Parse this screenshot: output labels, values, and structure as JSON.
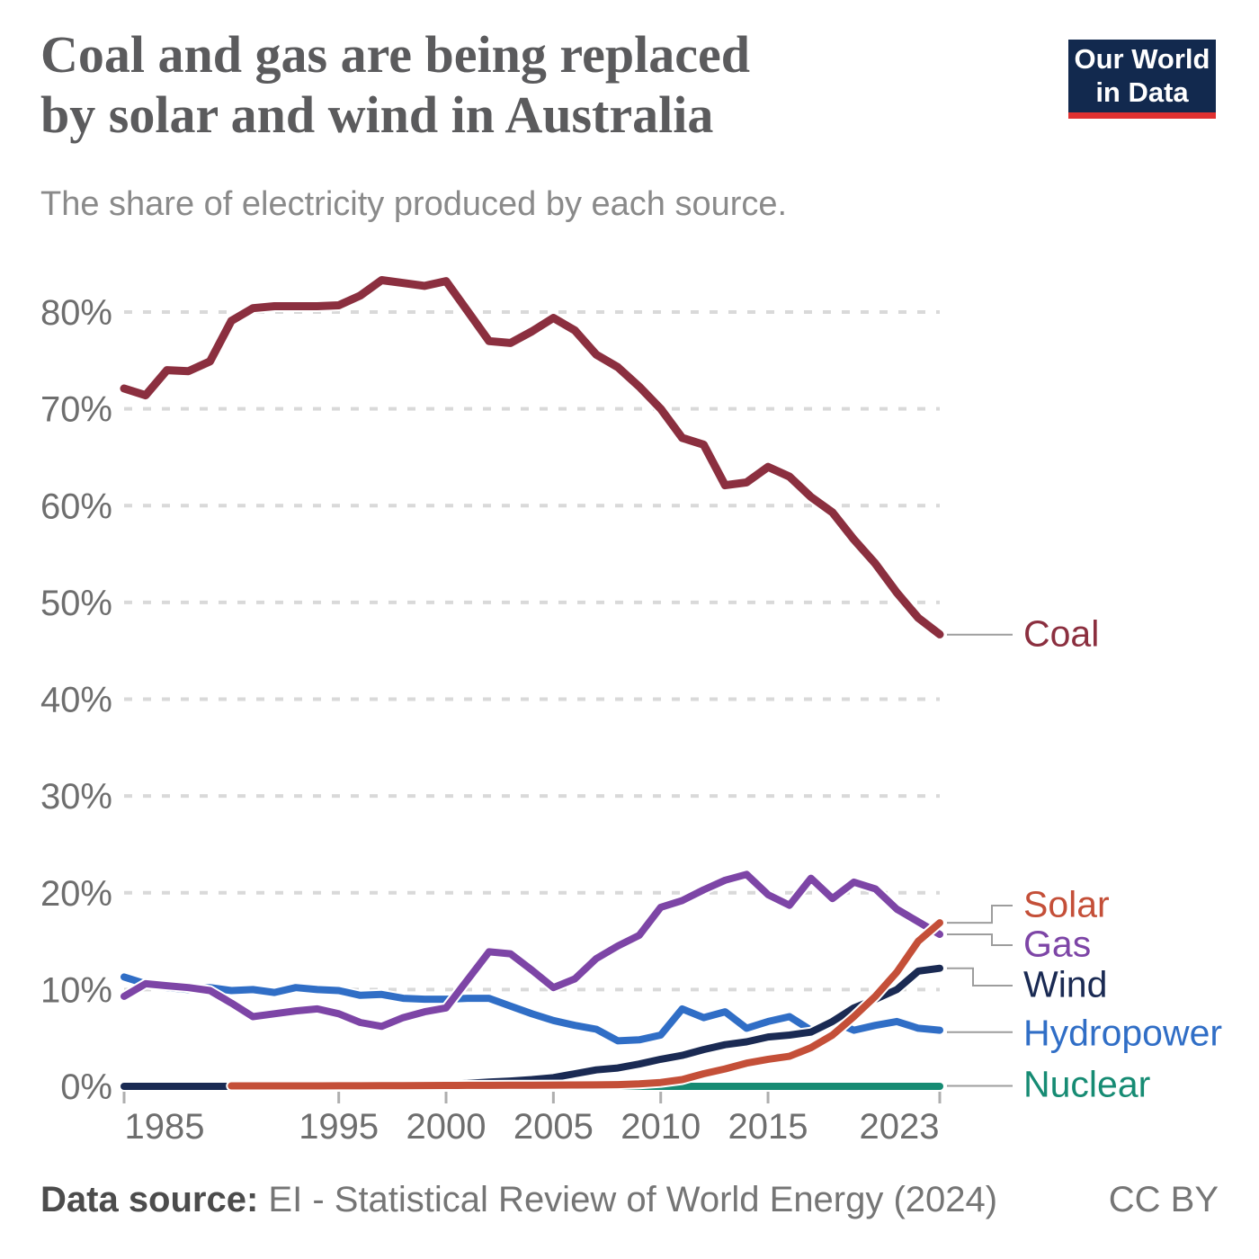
{
  "header": {
    "logo": {
      "line1": "Our World",
      "line2": "in Data",
      "bg_color": "#12294e",
      "accent_color": "#e03131"
    }
  },
  "footer": {
    "source_label": "Data source:",
    "source_value": " EI - Statistical Review of World Energy (2024)",
    "license": "CC BY"
  },
  "chart_data": {
    "type": "line",
    "title": "Coal and gas are being replaced\nby solar and wind in Australia",
    "subtitle": "The share of electricity produced by each source.",
    "xlabel": "",
    "ylabel": "",
    "ylim": [
      0,
      85
    ],
    "yticks": [
      0,
      10,
      20,
      30,
      40,
      50,
      60,
      70,
      80
    ],
    "ytick_suffix": "%",
    "xticks": [
      1985,
      1995,
      2000,
      2005,
      2010,
      2015,
      2023
    ],
    "grid": "horizontal dashed gridlines at 10%-80%, none at 0%",
    "legend_position": "right-edge direct labels with gray connector lines",
    "x": [
      1985,
      1986,
      1987,
      1988,
      1989,
      1990,
      1991,
      1992,
      1993,
      1994,
      1995,
      1996,
      1997,
      1998,
      1999,
      2000,
      2001,
      2002,
      2003,
      2004,
      2005,
      2006,
      2007,
      2008,
      2009,
      2010,
      2011,
      2012,
      2013,
      2014,
      2015,
      2016,
      2017,
      2018,
      2019,
      2020,
      2021,
      2022,
      2023
    ],
    "series": [
      {
        "id": "coal",
        "label": "Coal",
        "color": "#8b2f3f",
        "values": [
          72.1,
          71.4,
          74.0,
          73.9,
          74.9,
          79.1,
          80.4,
          80.6,
          80.6,
          80.6,
          80.7,
          81.7,
          83.3,
          83.0,
          82.7,
          83.2,
          80.1,
          77.0,
          76.8,
          78.0,
          79.4,
          78.1,
          75.6,
          74.3,
          72.3,
          70.0,
          67.0,
          66.3,
          62.1,
          62.4,
          64.0,
          63.0,
          60.9,
          59.3,
          56.5,
          54.0,
          51.0,
          48.4,
          46.7
        ]
      },
      {
        "id": "solar",
        "label": "Solar",
        "color": "#c44f38",
        "values": [
          null,
          null,
          null,
          null,
          null,
          0.05,
          0.05,
          0.05,
          0.05,
          0.05,
          0.06,
          0.06,
          0.07,
          0.07,
          0.08,
          0.09,
          0.1,
          0.1,
          0.11,
          0.12,
          0.13,
          0.14,
          0.15,
          0.18,
          0.25,
          0.4,
          0.7,
          1.3,
          1.8,
          2.4,
          2.8,
          3.1,
          4.0,
          5.3,
          7.2,
          9.3,
          11.8,
          15.0,
          16.9
        ]
      },
      {
        "id": "gas",
        "label": "Gas",
        "color": "#7d45a6",
        "values": [
          9.3,
          10.6,
          10.4,
          10.2,
          9.9,
          8.6,
          7.2,
          7.5,
          7.8,
          8.0,
          7.5,
          6.6,
          6.2,
          7.1,
          7.7,
          8.1,
          11.0,
          13.9,
          13.7,
          12.0,
          10.2,
          11.1,
          13.2,
          14.5,
          15.6,
          18.5,
          19.2,
          20.3,
          21.3,
          21.9,
          19.8,
          18.7,
          21.5,
          19.4,
          21.1,
          20.4,
          18.3,
          17.0,
          15.7
        ]
      },
      {
        "id": "wind",
        "label": "Wind",
        "color": "#1a2a53",
        "values": [
          0,
          0,
          0,
          0,
          0,
          0,
          0,
          0,
          0,
          0,
          0,
          0,
          0.05,
          0.1,
          0.15,
          0.2,
          0.3,
          0.45,
          0.55,
          0.7,
          0.9,
          1.3,
          1.7,
          1.9,
          2.3,
          2.8,
          3.2,
          3.8,
          4.3,
          4.6,
          5.1,
          5.3,
          5.6,
          6.7,
          8.1,
          9.0,
          10.0,
          11.9,
          12.2
        ]
      },
      {
        "id": "hydropower",
        "label": "Hydropower",
        "color": "#306ec6",
        "values": [
          11.3,
          10.6,
          10.2,
          10.0,
          10.2,
          9.9,
          10.0,
          9.7,
          10.2,
          10.0,
          9.9,
          9.4,
          9.5,
          9.1,
          9.0,
          9.0,
          9.1,
          9.1,
          8.3,
          7.5,
          6.8,
          6.3,
          5.9,
          4.7,
          4.8,
          5.3,
          8.0,
          7.1,
          7.7,
          6.0,
          6.7,
          7.2,
          5.8,
          6.7,
          5.8,
          6.3,
          6.7,
          6.0,
          5.8
        ]
      },
      {
        "id": "nuclear",
        "label": "Nuclear",
        "color": "#168b73",
        "values": [
          0,
          0,
          0,
          0,
          0,
          0,
          0,
          0,
          0,
          0,
          0,
          0,
          0,
          0,
          0,
          0,
          0,
          0,
          0,
          0,
          0,
          0,
          0,
          0,
          0,
          0,
          0,
          0,
          0,
          0,
          0,
          0,
          0,
          0,
          0,
          0,
          0,
          0,
          0
        ]
      }
    ]
  }
}
